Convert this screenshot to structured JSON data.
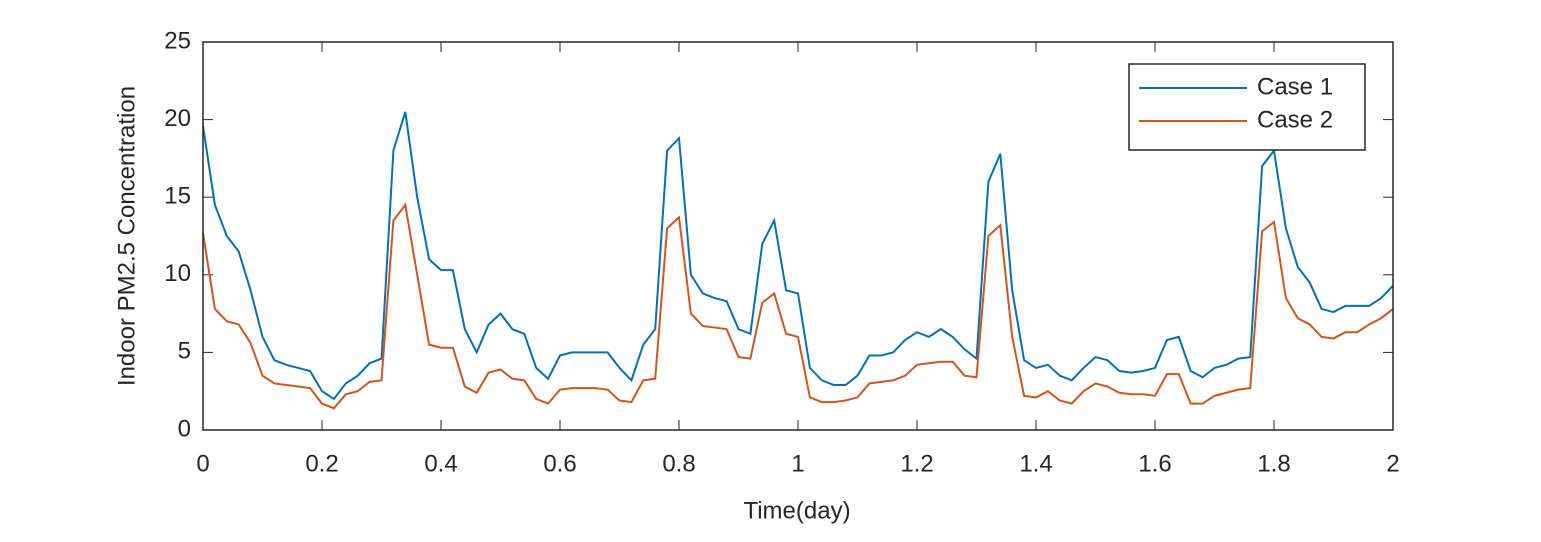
{
  "chart_data": {
    "type": "line",
    "xlabel": "Time(day)",
    "ylabel": "Indoor PM2.5 Concentration",
    "x": [
      0,
      0.02,
      0.04,
      0.06,
      0.08,
      0.1,
      0.12,
      0.14,
      0.16,
      0.18,
      0.2,
      0.22,
      0.24,
      0.26,
      0.28,
      0.3,
      0.32,
      0.34,
      0.36,
      0.38,
      0.4,
      0.42,
      0.44,
      0.46,
      0.48,
      0.5,
      0.52,
      0.54,
      0.56,
      0.58,
      0.6,
      0.62,
      0.64,
      0.66,
      0.68,
      0.7,
      0.72,
      0.74,
      0.76,
      0.78,
      0.8,
      0.82,
      0.84,
      0.86,
      0.88,
      0.9,
      0.92,
      0.94,
      0.96,
      0.98,
      1,
      1.02,
      1.04,
      1.06,
      1.08,
      1.1,
      1.12,
      1.14,
      1.16,
      1.18,
      1.2,
      1.22,
      1.24,
      1.26,
      1.28,
      1.3,
      1.32,
      1.34,
      1.36,
      1.38,
      1.4,
      1.42,
      1.44,
      1.46,
      1.48,
      1.5,
      1.52,
      1.54,
      1.56,
      1.58,
      1.6,
      1.62,
      1.64,
      1.66,
      1.68,
      1.7,
      1.72,
      1.74,
      1.76,
      1.78,
      1.8,
      1.82,
      1.84,
      1.86,
      1.88,
      1.9,
      1.92,
      1.94,
      1.96,
      1.98,
      2
    ],
    "series": [
      {
        "name": "Case 1",
        "color": "#0072bd",
        "values": [
          19.6,
          14.5,
          12.5,
          11.5,
          9,
          6,
          4.5,
          4.2,
          4,
          3.8,
          2.5,
          2,
          3,
          3.5,
          4.3,
          4.6,
          18,
          20.5,
          15,
          11,
          10.3,
          10.3,
          6.5,
          5,
          6.8,
          7.5,
          6.5,
          6.2,
          4,
          3.3,
          4.8,
          5,
          5,
          5,
          5,
          4,
          3.2,
          5.5,
          6.5,
          18,
          18.8,
          10,
          8.8,
          8.5,
          8.3,
          6.5,
          6.2,
          12,
          13.5,
          9,
          8.8,
          4,
          3.2,
          2.9,
          2.9,
          3.5,
          4.8,
          4.8,
          5,
          5.8,
          6.3,
          6,
          6.5,
          6,
          5.2,
          4.6,
          16,
          17.8,
          9,
          4.5,
          4,
          4.2,
          3.5,
          3.2,
          4,
          4.7,
          4.5,
          3.8,
          3.7,
          3.8,
          4,
          5.8,
          6,
          3.8,
          3.4,
          4,
          4.2,
          4.6,
          4.7,
          17,
          18,
          13,
          10.5,
          9.5,
          7.8,
          7.6,
          8,
          8,
          8,
          8.5,
          9.3
        ]
      },
      {
        "name": "Case 2",
        "color": "#d95319",
        "values": [
          12.7,
          7.8,
          7,
          6.8,
          5.6,
          3.5,
          3,
          2.9,
          2.8,
          2.7,
          1.7,
          1.4,
          2.3,
          2.5,
          3.1,
          3.2,
          13.5,
          14.5,
          10,
          5.5,
          5.3,
          5.3,
          2.8,
          2.4,
          3.7,
          3.9,
          3.3,
          3.2,
          2,
          1.7,
          2.6,
          2.7,
          2.7,
          2.7,
          2.6,
          1.9,
          1.8,
          3.2,
          3.3,
          13,
          13.7,
          7.5,
          6.7,
          6.6,
          6.5,
          4.7,
          4.6,
          8.2,
          8.8,
          6.2,
          6,
          2.1,
          1.8,
          1.8,
          1.9,
          2.1,
          3,
          3.1,
          3.2,
          3.5,
          4.2,
          4.3,
          4.4,
          4.4,
          3.5,
          3.4,
          12.5,
          13.2,
          6,
          2.2,
          2.1,
          2.5,
          1.9,
          1.7,
          2.5,
          3,
          2.8,
          2.4,
          2.3,
          2.3,
          2.2,
          3.6,
          3.6,
          1.7,
          1.7,
          2.2,
          2.4,
          2.6,
          2.7,
          12.8,
          13.4,
          8.5,
          7.2,
          6.8,
          6,
          5.9,
          6.3,
          6.3,
          6.8,
          7.2,
          7.8
        ]
      }
    ],
    "xlim": [
      0,
      2
    ],
    "xticks": [
      0,
      0.2,
      0.4,
      0.6,
      0.8,
      1,
      1.2,
      1.4,
      1.6,
      1.8,
      2
    ],
    "ylim": [
      0,
      25
    ],
    "yticks": [
      0,
      5,
      10,
      15,
      20,
      25
    ],
    "legend": "upper right",
    "grid": false
  }
}
